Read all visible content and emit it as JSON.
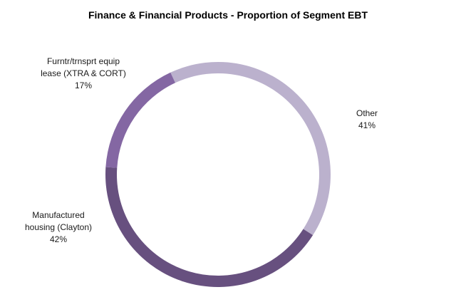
{
  "chart_data": {
    "type": "pie",
    "style": "donut",
    "title": "Finance & Financial Products - Proportion of Segment EBT",
    "slices": [
      {
        "name": "Other",
        "label_lines": [
          "Other"
        ],
        "value": 41,
        "value_label": "41%",
        "color": "#bbb1cd"
      },
      {
        "name": "Manufactured housing (Clayton)",
        "label_lines": [
          "Manufactured",
          "housing (Clayton)"
        ],
        "value": 42,
        "value_label": "42%",
        "color": "#67507f"
      },
      {
        "name": "Furntr/trnsprt equip lease (XTRA & CORT)",
        "label_lines": [
          "Furntr/trnsprt equip",
          "lease (XTRA & CORT)"
        ],
        "value": 17,
        "value_label": "17%",
        "color": "#8467a3"
      }
    ],
    "legend": "none"
  }
}
